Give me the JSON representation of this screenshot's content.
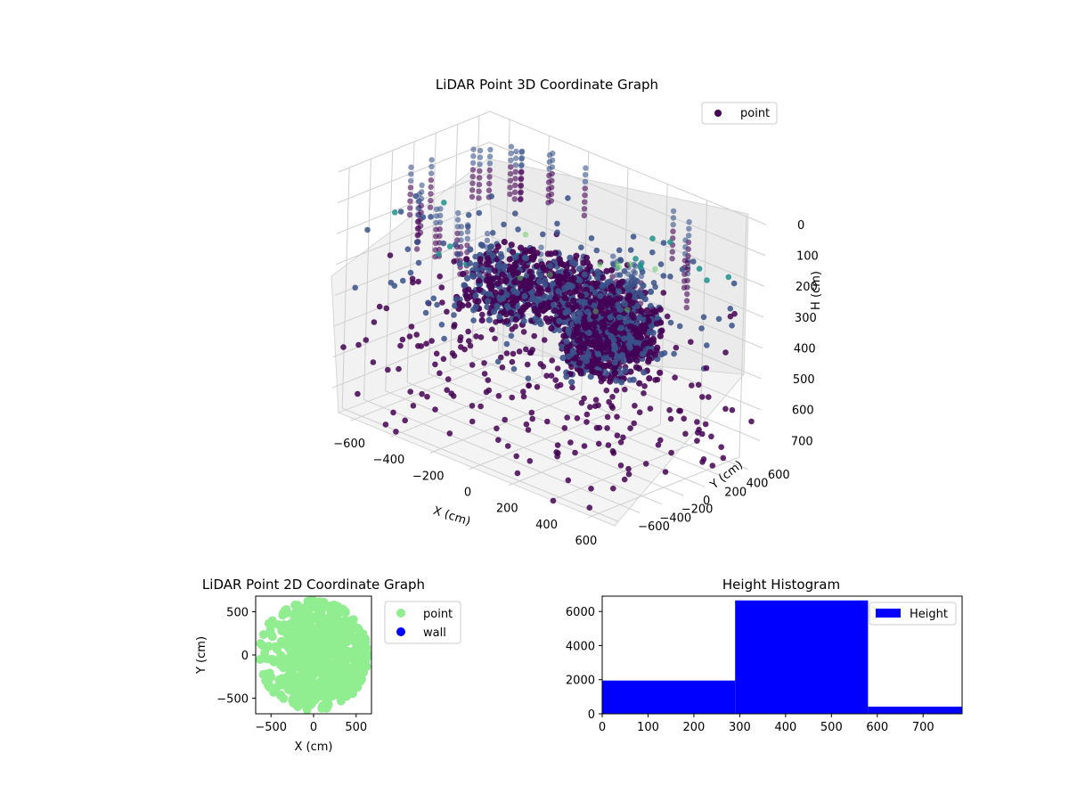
{
  "colors": {
    "point_3d_dark": "#440154",
    "point_3d_mid": "#3b528b",
    "point_3d_teal": "#21918c",
    "point_3d_light": "#5ec962",
    "point_2d": "#90ee90",
    "wall": "#0000ff",
    "hist_bar": "#0000ff",
    "pane": "#f2f2f2",
    "grid": "#cccccc"
  },
  "chart_data": [
    {
      "type": "scatter",
      "projection": "3d",
      "title": "LiDAR Point 3D Coordinate Graph",
      "xlabel": "X (cm)",
      "ylabel": "Y (cm)",
      "zlabel": "H (cm)",
      "xlim": [
        -700,
        700
      ],
      "ylim": [
        -700,
        700
      ],
      "zlim": [
        780,
        0
      ],
      "xticks": [
        -600,
        -400,
        -200,
        0,
        200,
        400,
        600
      ],
      "yticks": [
        -600,
        -400,
        -200,
        0,
        200,
        400,
        600
      ],
      "zticks": [
        0,
        100,
        200,
        300,
        400,
        500,
        600,
        700
      ],
      "legend": [
        "point"
      ],
      "legend_position": "top-right",
      "grid": true,
      "series": [
        {
          "name": "point",
          "colormap": "viridis"
        }
      ]
    },
    {
      "type": "scatter",
      "title": "LiDAR Point 2D Coordinate Graph",
      "xlabel": "X (cm)",
      "ylabel": "Y (cm)",
      "xlim": [
        -680,
        680
      ],
      "ylim": [
        -680,
        680
      ],
      "xticks": [
        -500,
        0,
        500
      ],
      "yticks": [
        -500,
        0,
        500
      ],
      "legend": [
        "point",
        "wall"
      ],
      "legend_position": "outside-right",
      "series": [
        {
          "name": "point"
        },
        {
          "name": "wall"
        }
      ]
    },
    {
      "type": "bar",
      "title": "Height Histogram",
      "xlim": [
        0,
        785
      ],
      "ylim": [
        0,
        6900
      ],
      "xticks": [
        0,
        100,
        200,
        300,
        400,
        500,
        600,
        700
      ],
      "yticks": [
        0,
        2000,
        4000,
        6000
      ],
      "bins": [
        {
          "start": 0,
          "end": 290,
          "value": 1950
        },
        {
          "start": 290,
          "end": 580,
          "value": 6650
        },
        {
          "start": 580,
          "end": 785,
          "value": 420
        }
      ],
      "legend": [
        "Height"
      ],
      "legend_position": "top-right",
      "series": [
        {
          "name": "Height"
        }
      ]
    }
  ]
}
